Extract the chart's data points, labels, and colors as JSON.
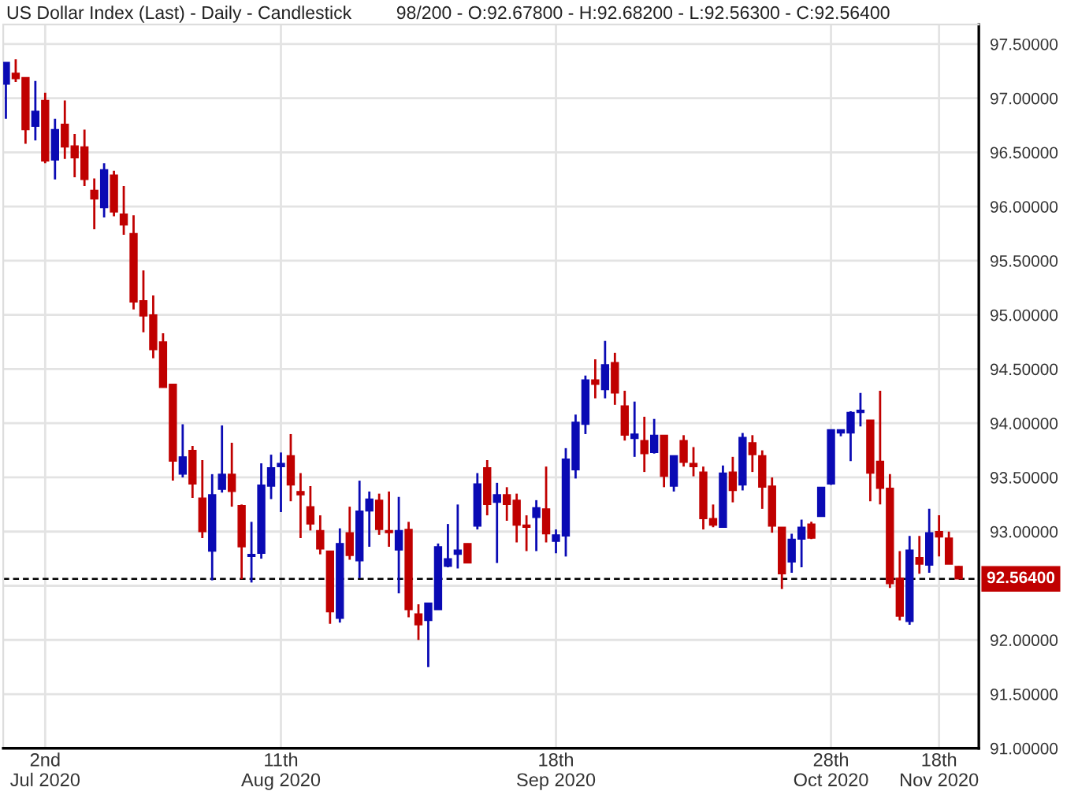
{
  "chart_data": {
    "type": "candlestick",
    "title": "US Dollar Index (Last) - Daily - Candlestick",
    "subtitle": "98/200 - O:92.67800 - H:92.68200 - L:92.56300 - C:92.56400",
    "categories": [
      null,
      null,
      null,
      null,
      "2nd\nJul 2020",
      null,
      null,
      null,
      null,
      null,
      null,
      null,
      null,
      null,
      null,
      null,
      null,
      null,
      null,
      null,
      null,
      null,
      null,
      null,
      null,
      null,
      null,
      null,
      "11th\nAug 2020",
      null,
      null,
      null,
      null,
      null,
      null,
      null,
      null,
      null,
      null,
      null,
      null,
      null,
      null,
      null,
      null,
      null,
      null,
      null,
      null,
      null,
      null,
      null,
      null,
      null,
      null,
      null,
      "18th\nSep 2020",
      null,
      null,
      null,
      null,
      null,
      null,
      null,
      null,
      null,
      null,
      null,
      null,
      null,
      null,
      null,
      null,
      null,
      null,
      null,
      null,
      null,
      null,
      null,
      null,
      null,
      null,
      null,
      "28th\nOct 2020",
      null,
      null,
      null,
      null,
      null,
      null,
      null,
      null,
      null,
      null,
      "18th\nNov 2020",
      null,
      null
    ],
    "ohlc": [
      [
        97.13,
        97.33,
        96.81,
        97.33
      ],
      [
        97.23,
        97.36,
        97.15,
        97.18
      ],
      [
        97.19,
        97.19,
        96.58,
        96.71
      ],
      [
        96.74,
        97.16,
        96.61,
        96.88
      ],
      [
        96.98,
        97.05,
        96.4,
        96.42
      ],
      [
        96.43,
        96.81,
        96.25,
        96.71
      ],
      [
        96.76,
        96.98,
        96.44,
        96.55
      ],
      [
        96.56,
        96.67,
        96.27,
        96.45
      ],
      [
        96.55,
        96.71,
        96.19,
        96.25
      ],
      [
        96.15,
        96.26,
        95.79,
        96.07
      ],
      [
        95.99,
        96.4,
        95.9,
        96.34
      ],
      [
        96.29,
        96.33,
        95.91,
        95.95
      ],
      [
        95.93,
        96.19,
        95.74,
        95.83
      ],
      [
        95.75,
        95.92,
        95.05,
        95.12
      ],
      [
        95.13,
        95.41,
        94.84,
        94.99
      ],
      [
        95.0,
        95.18,
        94.6,
        94.68
      ],
      [
        94.75,
        94.83,
        94.33,
        94.33
      ],
      [
        94.36,
        94.36,
        93.47,
        93.65
      ],
      [
        93.53,
        93.99,
        93.5,
        93.69
      ],
      [
        93.75,
        93.79,
        93.31,
        93.44
      ],
      [
        93.31,
        93.66,
        92.94,
        93.0
      ],
      [
        92.82,
        93.53,
        92.55,
        93.34
      ],
      [
        93.39,
        93.98,
        93.36,
        93.53
      ],
      [
        93.53,
        93.82,
        93.23,
        93.37
      ],
      [
        93.24,
        93.25,
        92.56,
        92.86
      ],
      [
        92.77,
        93.09,
        92.53,
        92.79
      ],
      [
        92.8,
        93.63,
        92.75,
        93.43
      ],
      [
        93.42,
        93.71,
        93.3,
        93.59
      ],
      [
        93.6,
        93.73,
        93.18,
        93.63
      ],
      [
        93.7,
        93.9,
        93.28,
        93.43
      ],
      [
        93.37,
        93.54,
        92.94,
        93.34
      ],
      [
        93.23,
        93.42,
        93.01,
        93.07
      ],
      [
        93.01,
        93.15,
        92.79,
        92.84
      ],
      [
        92.82,
        92.82,
        92.15,
        92.26
      ],
      [
        92.2,
        93.03,
        92.16,
        92.89
      ],
      [
        92.99,
        93.23,
        92.74,
        92.78
      ],
      [
        92.73,
        93.47,
        92.57,
        93.19
      ],
      [
        93.19,
        93.37,
        92.86,
        93.3
      ],
      [
        93.29,
        93.35,
        92.97,
        93.02
      ],
      [
        93.01,
        93.37,
        92.86,
        92.99
      ],
      [
        92.83,
        93.32,
        92.43,
        93.01
      ],
      [
        93.02,
        93.09,
        92.21,
        92.28
      ],
      [
        92.24,
        92.33,
        92.0,
        92.14
      ],
      [
        92.18,
        92.34,
        91.75,
        92.34
      ],
      [
        92.28,
        92.89,
        92.28,
        92.86
      ],
      [
        92.68,
        93.07,
        92.67,
        92.75
      ],
      [
        92.79,
        93.25,
        92.66,
        92.83
      ],
      [
        92.89,
        92.89,
        92.71,
        92.71
      ],
      [
        93.05,
        93.54,
        93.02,
        93.44
      ],
      [
        93.59,
        93.66,
        93.15,
        93.25
      ],
      [
        93.27,
        93.45,
        92.71,
        93.34
      ],
      [
        93.34,
        93.41,
        93.1,
        93.25
      ],
      [
        93.29,
        93.35,
        92.9,
        93.06
      ],
      [
        93.06,
        93.15,
        92.82,
        93.04
      ],
      [
        93.13,
        93.29,
        92.82,
        93.22
      ],
      [
        93.21,
        93.6,
        92.9,
        92.98
      ],
      [
        92.91,
        93.02,
        92.8,
        92.97
      ],
      [
        92.96,
        93.77,
        92.77,
        93.67
      ],
      [
        93.57,
        94.08,
        93.49,
        94.01
      ],
      [
        93.99,
        94.44,
        93.9,
        94.4
      ],
      [
        94.4,
        94.59,
        94.23,
        94.36
      ],
      [
        94.31,
        94.76,
        94.23,
        94.54
      ],
      [
        94.56,
        94.65,
        94.17,
        94.28
      ],
      [
        94.16,
        94.3,
        93.84,
        93.89
      ],
      [
        93.86,
        94.2,
        93.69,
        93.9
      ],
      [
        93.84,
        94.06,
        93.55,
        93.72
      ],
      [
        93.73,
        94.04,
        93.72,
        93.89
      ],
      [
        93.89,
        93.89,
        93.41,
        93.51
      ],
      [
        93.42,
        93.7,
        93.37,
        93.7
      ],
      [
        93.84,
        93.89,
        93.6,
        93.64
      ],
      [
        93.63,
        93.78,
        93.51,
        93.6
      ],
      [
        93.55,
        93.6,
        93.02,
        93.12
      ],
      [
        93.12,
        93.25,
        93.04,
        93.06
      ],
      [
        93.04,
        93.61,
        93.04,
        93.54
      ],
      [
        93.55,
        93.69,
        93.27,
        93.38
      ],
      [
        93.43,
        93.91,
        93.38,
        93.87
      ],
      [
        93.82,
        93.89,
        93.55,
        93.71
      ],
      [
        93.7,
        93.75,
        93.21,
        93.41
      ],
      [
        93.42,
        93.5,
        92.99,
        93.05
      ],
      [
        93.04,
        93.04,
        92.47,
        92.61
      ],
      [
        92.72,
        92.98,
        92.62,
        92.93
      ],
      [
        92.93,
        93.11,
        92.67,
        93.04
      ],
      [
        93.07,
        93.09,
        92.93,
        92.94
      ],
      [
        93.14,
        93.41,
        93.14,
        93.41
      ],
      [
        93.44,
        93.94,
        93.43,
        93.94
      ],
      [
        93.91,
        93.94,
        93.88,
        93.94
      ],
      [
        93.91,
        94.11,
        93.65,
        94.1
      ],
      [
        94.1,
        94.28,
        93.97,
        94.12
      ],
      [
        94.03,
        94.03,
        93.28,
        93.54
      ],
      [
        93.65,
        94.3,
        93.25,
        93.4
      ],
      [
        93.4,
        93.53,
        92.48,
        92.52
      ],
      [
        92.57,
        92.82,
        92.18,
        92.22
      ],
      [
        92.17,
        92.96,
        92.14,
        92.83
      ],
      [
        92.76,
        92.96,
        92.61,
        92.7
      ],
      [
        92.69,
        93.21,
        92.62,
        92.99
      ],
      [
        93.0,
        93.15,
        92.77,
        92.95
      ],
      [
        92.94,
        93.0,
        92.7,
        92.7
      ],
      [
        92.678,
        92.682,
        92.563,
        92.564
      ]
    ],
    "colors": [
      "#0a0ab4",
      "#c00000",
      "#c00000",
      "#0a0ab4",
      "#c00000",
      "#0a0ab4",
      "#c00000",
      "#c00000",
      "#c00000",
      "#c00000",
      "#0a0ab4",
      "#c00000",
      "#c00000",
      "#c00000",
      "#c00000",
      "#c00000",
      "#c00000",
      "#c00000",
      "#0a0ab4",
      "#c00000",
      "#c00000",
      "#0a0ab4",
      "#0a0ab4",
      "#c00000",
      "#c00000",
      "#0a0ab4",
      "#0a0ab4",
      "#0a0ab4",
      "#0a0ab4",
      "#c00000",
      "#c00000",
      "#c00000",
      "#c00000",
      "#c00000",
      "#0a0ab4",
      "#c00000",
      "#0a0ab4",
      "#0a0ab4",
      "#c00000",
      "#c00000",
      "#0a0ab4",
      "#c00000",
      "#c00000",
      "#0a0ab4",
      "#0a0ab4",
      "#0a0ab4",
      "#0a0ab4",
      "#c00000",
      "#0a0ab4",
      "#c00000",
      "#0a0ab4",
      "#c00000",
      "#c00000",
      "#c00000",
      "#0a0ab4",
      "#c00000",
      "#0a0ab4",
      "#0a0ab4",
      "#0a0ab4",
      "#0a0ab4",
      "#c00000",
      "#0a0ab4",
      "#c00000",
      "#c00000",
      "#0a0ab4",
      "#c00000",
      "#0a0ab4",
      "#c00000",
      "#0a0ab4",
      "#c00000",
      "#c00000",
      "#c00000",
      "#c00000",
      "#0a0ab4",
      "#c00000",
      "#0a0ab4",
      "#c00000",
      "#c00000",
      "#c00000",
      "#c00000",
      "#0a0ab4",
      "#0a0ab4",
      "#c00000",
      "#0a0ab4",
      "#0a0ab4",
      "#0a0ab4",
      "#0a0ab4",
      "#0a0ab4",
      "#c00000",
      "#c00000",
      "#c00000",
      "#c00000",
      "#0a0ab4",
      "#c00000",
      "#0a0ab4",
      "#c00000",
      "#c00000",
      "#c00000"
    ],
    "ylim": [
      91.0,
      97.68
    ],
    "yticks": [
      {
        "value": 91.0,
        "label": "91.00000"
      },
      {
        "value": 91.5,
        "label": "91.50000"
      },
      {
        "value": 92.0,
        "label": "92.00000"
      },
      {
        "value": 92.5,
        "label": null
      },
      {
        "value": 93.0,
        "label": "93.00000"
      },
      {
        "value": 93.5,
        "label": "93.50000"
      },
      {
        "value": 94.0,
        "label": "94.00000"
      },
      {
        "value": 94.5,
        "label": "94.50000"
      },
      {
        "value": 95.0,
        "label": "95.00000"
      },
      {
        "value": 95.5,
        "label": "95.50000"
      },
      {
        "value": 96.0,
        "label": "96.00000"
      },
      {
        "value": 96.5,
        "label": "96.50000"
      },
      {
        "value": 97.0,
        "label": "97.00000"
      },
      {
        "value": 97.5,
        "label": "97.50000"
      }
    ],
    "grid": true,
    "ref_lines": [
      {
        "axis": "y",
        "value": 92.564,
        "label": "92.56400",
        "color": "#000000",
        "line_style": "dashed"
      }
    ]
  }
}
